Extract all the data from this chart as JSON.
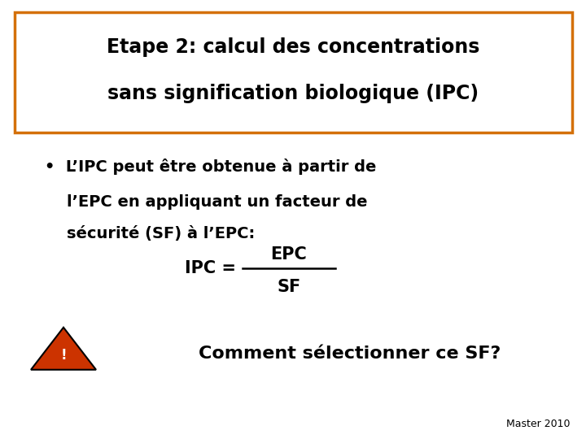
{
  "background_color": "#ffffff",
  "title_text_line1": "Etape 2: calcul des concentrations",
  "title_text_line2": "sans signification biologique (IPC)",
  "title_box_edge_color": "#d4700a",
  "title_font_size": 17,
  "title_font_weight": "bold",
  "bullet_text_line1": "•  L’IPC peut être obtenue à partir de",
  "bullet_text_line2": "    l’EPC en appliquant un facteur de",
  "bullet_text_line3": "    sécurité (SF) à l’EPC:",
  "bullet_font_size": 14,
  "formula_epc": "EPC",
  "formula_sf": "SF",
  "formula_font_size": 15,
  "comment_text": "Comment sélectionner ce SF?",
  "comment_font_size": 16,
  "comment_font_weight": "bold",
  "triangle_fill": "#cc3300",
  "triangle_edge": "#000000",
  "exclaim_color": "#ffffff",
  "footer_text": "Master 2010",
  "footer_font_size": 9
}
